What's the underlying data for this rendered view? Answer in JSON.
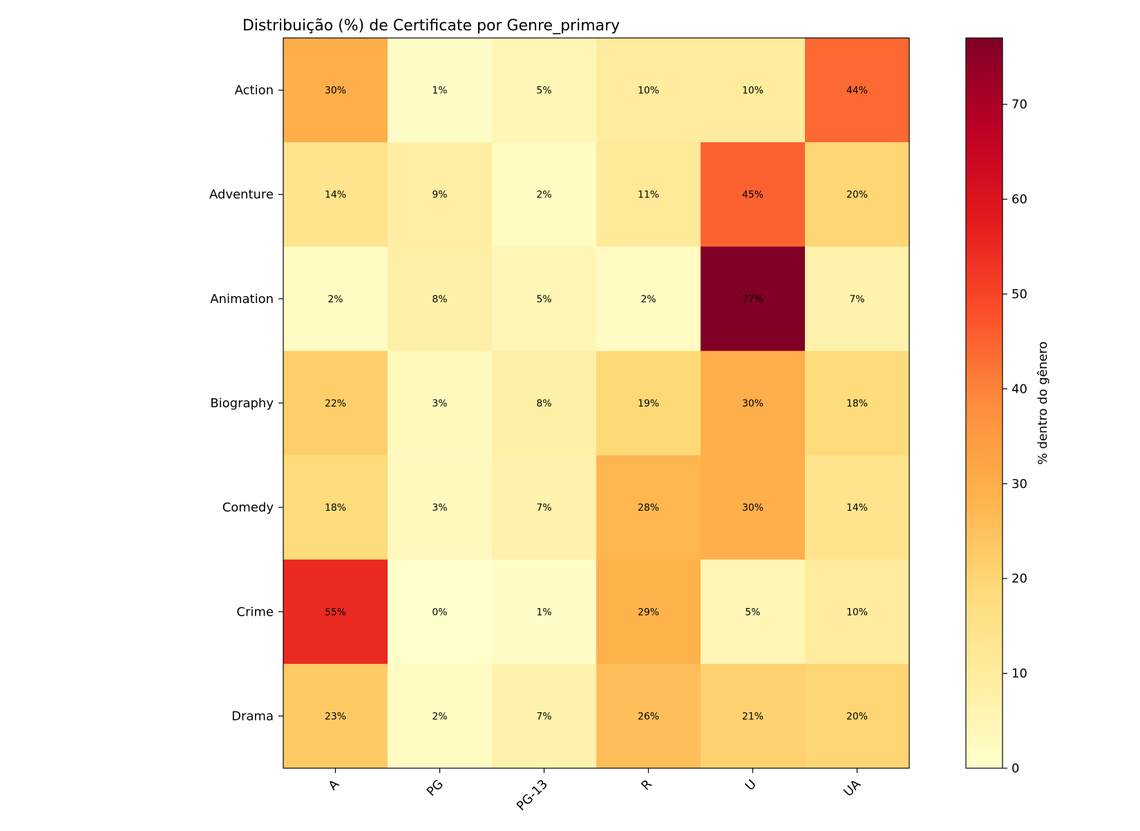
{
  "chart_data": {
    "type": "heatmap",
    "title": "Distribuição (%) de Certificate por Genre_primary",
    "xlabel": "",
    "ylabel": "",
    "x_categories": [
      "A",
      "PG",
      "PG-13",
      "R",
      "U",
      "UA"
    ],
    "y_categories": [
      "Action",
      "Adventure",
      "Animation",
      "Biography",
      "Comedy",
      "Crime",
      "Drama"
    ],
    "values": [
      [
        30,
        1,
        5,
        10,
        10,
        44
      ],
      [
        14,
        9,
        2,
        11,
        45,
        20
      ],
      [
        2,
        8,
        5,
        2,
        77,
        7
      ],
      [
        22,
        3,
        8,
        19,
        30,
        18
      ],
      [
        18,
        3,
        7,
        28,
        30,
        14
      ],
      [
        55,
        0,
        1,
        29,
        5,
        10
      ],
      [
        23,
        2,
        7,
        26,
        21,
        20
      ]
    ],
    "cell_labels": [
      [
        "30%",
        "1%",
        "5%",
        "10%",
        "10%",
        "44%"
      ],
      [
        "14%",
        "9%",
        "2%",
        "11%",
        "45%",
        "20%"
      ],
      [
        "2%",
        "8%",
        "5%",
        "2%",
        "77%",
        "7%"
      ],
      [
        "22%",
        "3%",
        "8%",
        "19%",
        "30%",
        "18%"
      ],
      [
        "18%",
        "3%",
        "7%",
        "28%",
        "30%",
        "14%"
      ],
      [
        "55%",
        "0%",
        "1%",
        "29%",
        "5%",
        "10%"
      ],
      [
        "23%",
        "2%",
        "7%",
        "26%",
        "21%",
        "20%"
      ]
    ],
    "colorbar": {
      "label": "% dentro do gênero",
      "range": [
        0,
        77
      ],
      "ticks": [
        0,
        10,
        20,
        30,
        40,
        50,
        60,
        70
      ],
      "colormap": "YlOrRd"
    },
    "x_tick_rotation_deg": 45,
    "grid": false
  }
}
